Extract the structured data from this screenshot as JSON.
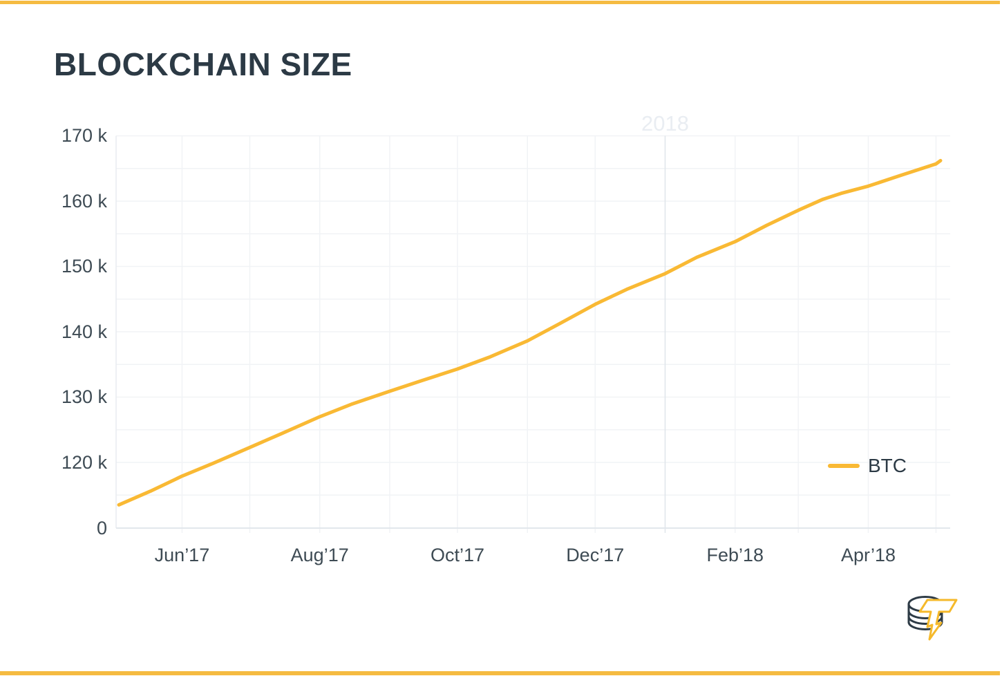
{
  "page": {
    "title": "BLOCKCHAIN SIZE",
    "accent_color": "#F5BB41",
    "background": "#ffffff"
  },
  "legend": {
    "items": [
      {
        "label": "BTC",
        "color": "#F9B934"
      }
    ]
  },
  "logo": {
    "name": "coin-stack-lightning-logo",
    "coin_color": "#2E3B46",
    "bolt_color": "#F5B92B"
  },
  "chart_data": {
    "type": "line",
    "title": "BLOCKCHAIN SIZE",
    "ylabel": "",
    "xlabel": "",
    "unit": "k (thousand MB)",
    "grid": true,
    "legend_position": "right-middle",
    "line_color": "#F9B934",
    "grid_color": "#F1F3F6",
    "axis_line_color": "#E2E7EC",
    "year_line_color": "#DFE5EA",
    "year_label": "2018",
    "year_label_date": "2018-01-01",
    "y_tick_labels": [
      {
        "label": "170 k",
        "value": 170
      },
      {
        "label": "160 k",
        "value": 160
      },
      {
        "label": "150 k",
        "value": 150
      },
      {
        "label": "140 k",
        "value": 140
      },
      {
        "label": "130 k",
        "value": 130
      },
      {
        "label": "120 k",
        "value": 120
      },
      {
        "label": "0",
        "value": "axis-bottom"
      }
    ],
    "y_grid_values": [
      170,
      165,
      160,
      155,
      150,
      145,
      140,
      135,
      130,
      125,
      120,
      115
    ],
    "x_tick_labels": [
      {
        "label": "Jun’17",
        "date": "2017-06-01"
      },
      {
        "label": "Aug’17",
        "date": "2017-08-01"
      },
      {
        "label": "Oct’17",
        "date": "2017-10-01"
      },
      {
        "label": "Dec’17",
        "date": "2017-12-01"
      },
      {
        "label": "Feb’18",
        "date": "2018-02-01"
      },
      {
        "label": "Apr’18",
        "date": "2018-04-01"
      }
    ],
    "x_grid_dates": [
      "2017-06-01",
      "2017-07-01",
      "2017-08-01",
      "2017-09-01",
      "2017-10-01",
      "2017-11-01",
      "2017-12-01",
      "2018-01-01",
      "2018-02-01",
      "2018-03-01",
      "2018-04-01",
      "2018-05-01"
    ],
    "x_range": [
      "2017-05-04",
      "2018-05-03"
    ],
    "series": [
      {
        "name": "BTC",
        "points": [
          {
            "date": "2017-05-04",
            "value": 113.5
          },
          {
            "date": "2017-05-18",
            "value": 115.6
          },
          {
            "date": "2017-06-01",
            "value": 117.9
          },
          {
            "date": "2017-06-15",
            "value": 119.9
          },
          {
            "date": "2017-07-01",
            "value": 122.3
          },
          {
            "date": "2017-07-15",
            "value": 124.4
          },
          {
            "date": "2017-08-01",
            "value": 127.0
          },
          {
            "date": "2017-08-15",
            "value": 128.9
          },
          {
            "date": "2017-09-01",
            "value": 130.9
          },
          {
            "date": "2017-09-15",
            "value": 132.5
          },
          {
            "date": "2017-10-01",
            "value": 134.3
          },
          {
            "date": "2017-10-15",
            "value": 136.1
          },
          {
            "date": "2017-11-01",
            "value": 138.6
          },
          {
            "date": "2017-11-15",
            "value": 141.2
          },
          {
            "date": "2017-12-01",
            "value": 144.2
          },
          {
            "date": "2017-12-15",
            "value": 146.5
          },
          {
            "date": "2018-01-01",
            "value": 148.9
          },
          {
            "date": "2018-01-15",
            "value": 151.4
          },
          {
            "date": "2018-02-01",
            "value": 153.8
          },
          {
            "date": "2018-02-15",
            "value": 156.3
          },
          {
            "date": "2018-03-01",
            "value": 158.6
          },
          {
            "date": "2018-03-12",
            "value": 160.3
          },
          {
            "date": "2018-03-20",
            "value": 161.2
          },
          {
            "date": "2018-04-01",
            "value": 162.3
          },
          {
            "date": "2018-04-15",
            "value": 163.9
          },
          {
            "date": "2018-05-01",
            "value": 165.7
          },
          {
            "date": "2018-05-03",
            "value": 166.2
          }
        ]
      }
    ]
  }
}
